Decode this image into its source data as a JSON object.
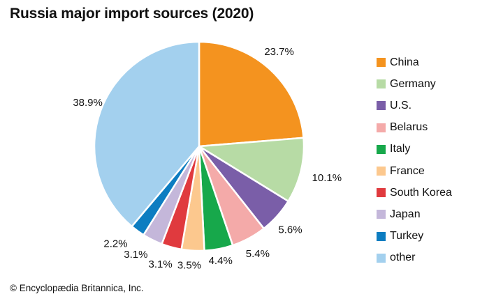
{
  "chart_data": {
    "type": "pie",
    "title": "Russia major import sources (2020)",
    "slices": [
      {
        "label": "China",
        "value": 23.7,
        "display": "23.7%",
        "color": "#f4931f"
      },
      {
        "label": "Germany",
        "value": 10.1,
        "display": "10.1%",
        "color": "#b7dba5"
      },
      {
        "label": "U.S.",
        "value": 5.6,
        "display": "5.6%",
        "color": "#7a5ea8"
      },
      {
        "label": "Belarus",
        "value": 5.4,
        "display": "5.4%",
        "color": "#f4aaa9"
      },
      {
        "label": "Italy",
        "value": 4.4,
        "display": "4.4%",
        "color": "#17a84b"
      },
      {
        "label": "France",
        "value": 3.5,
        "display": "3.5%",
        "color": "#fcc88e"
      },
      {
        "label": "South Korea",
        "value": 3.1,
        "display": "3.1%",
        "color": "#e03a3e"
      },
      {
        "label": "Japan",
        "value": 3.1,
        "display": "3.1%",
        "color": "#c4b7da"
      },
      {
        "label": "Turkey",
        "value": 2.2,
        "display": "2.2%",
        "color": "#0d7dc1"
      },
      {
        "label": "other",
        "value": 38.9,
        "display": "38.9%",
        "color": "#a3d0ee"
      }
    ],
    "legend_position": "right",
    "start_angle": "12 o'clock",
    "direction": "clockwise"
  },
  "credit": "© Encyclopædia Britannica, Inc."
}
